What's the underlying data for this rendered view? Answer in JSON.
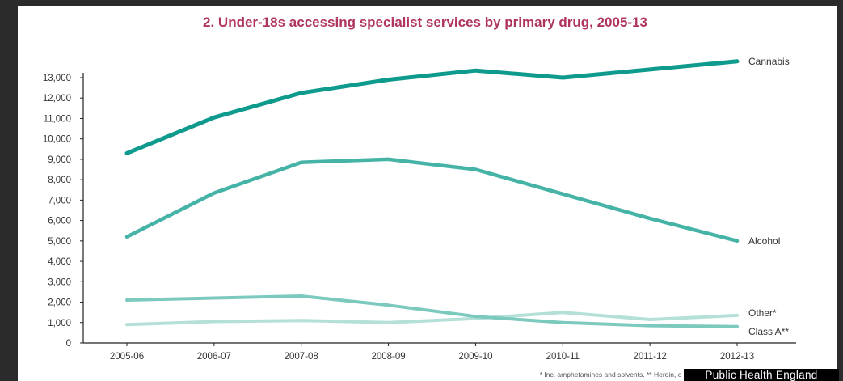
{
  "chart_data": {
    "type": "line",
    "title": "2. Under-18s accessing specialist services by primary drug, 2005-13",
    "categories": [
      "2005-06",
      "2006-07",
      "2007-08",
      "2008-09",
      "2009-10",
      "2010-11",
      "2011-12",
      "2012-13"
    ],
    "ylim": [
      0,
      13000
    ],
    "yticks": [
      0,
      1000,
      2000,
      3000,
      4000,
      5000,
      6000,
      7000,
      8000,
      9000,
      10000,
      11000,
      12000,
      13000
    ],
    "ytick_labels": [
      "0",
      "1,000",
      "2,000",
      "3,000",
      "4,000",
      "5,000",
      "6,000",
      "7,000",
      "8,000",
      "9,000",
      "10,000",
      "11,000",
      "12,000",
      "13,000"
    ],
    "grid": false,
    "series": [
      {
        "name": "Cannabis",
        "color": "#0e9a8c",
        "width": 5,
        "values": [
          9300,
          11050,
          12250,
          12900,
          13350,
          13000,
          13400,
          13800
        ]
      },
      {
        "name": "Alcohol",
        "color": "#45b3a6",
        "width": 4.5,
        "values": [
          5200,
          7350,
          8850,
          9000,
          8500,
          7300,
          6100,
          5000
        ]
      },
      {
        "name": "Other*",
        "color": "#b5e0d8",
        "width": 4,
        "values": [
          900,
          1050,
          1100,
          1000,
          1200,
          1500,
          1150,
          1350
        ]
      },
      {
        "name": "Class A**",
        "color": "#7cc9be",
        "width": 4,
        "values": [
          2100,
          2200,
          2300,
          1850,
          1300,
          1000,
          850,
          800
        ]
      }
    ],
    "footnote": "* Inc. amphetamines and solvents. ** Heroin, c"
  },
  "source_label": "Public Health England"
}
